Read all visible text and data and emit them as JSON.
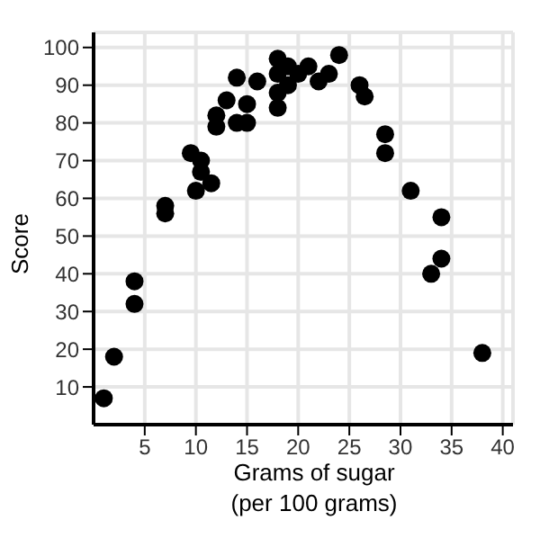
{
  "chart_data": {
    "type": "scatter",
    "xlabel": "Grams of sugar\n(per 100 grams)",
    "ylabel": "Score",
    "color": "#000000",
    "marker": "circle",
    "grid": true,
    "x": [
      1,
      2,
      4,
      4,
      7,
      7,
      9.5,
      10.5,
      10.5,
      10,
      11.5,
      12,
      12,
      13,
      14,
      14,
      15,
      15,
      16,
      18,
      18,
      18,
      18,
      19,
      19,
      20,
      21,
      22,
      23,
      24,
      26,
      26.5,
      28.5,
      28.5,
      31,
      33,
      34,
      34,
      38
    ],
    "values": [
      7,
      18,
      38,
      32,
      58,
      56,
      72,
      70,
      67,
      62,
      64,
      82,
      79,
      86,
      92,
      80,
      85,
      80,
      91,
      97,
      93,
      88,
      84,
      95,
      90,
      93,
      95,
      91,
      93,
      98,
      90,
      87,
      77,
      72,
      62,
      40,
      55,
      44,
      19
    ],
    "xlim": [
      0,
      41
    ],
    "xticks": [
      5,
      10,
      15,
      20,
      25,
      30,
      35,
      40
    ],
    "ylim": [
      0,
      104
    ],
    "yticks": [
      10,
      20,
      30,
      40,
      50,
      60,
      70,
      80,
      90,
      100
    ]
  }
}
